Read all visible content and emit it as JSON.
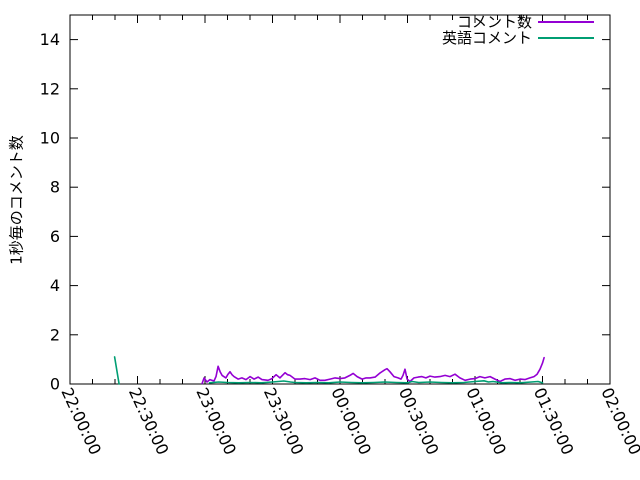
{
  "figure": {
    "background": "#ffffff",
    "axis_color": "#000000"
  },
  "chart_data": {
    "type": "line",
    "title": "",
    "xlabel": "",
    "ylabel": "1秒毎のコメント数",
    "ylim": [
      0,
      15
    ],
    "yticks": [
      0,
      2,
      4,
      6,
      8,
      10,
      12,
      14
    ],
    "x_unit": "minutes_after_22:00:00",
    "xlim_minutes": [
      0,
      240
    ],
    "xticks": [
      {
        "minute": 0,
        "label": "22:00:00"
      },
      {
        "minute": 30,
        "label": "22:30:00"
      },
      {
        "minute": 60,
        "label": "23:00:00"
      },
      {
        "minute": 90,
        "label": "23:30:00"
      },
      {
        "minute": 120,
        "label": "00:00:00"
      },
      {
        "minute": 150,
        "label": "00:30:00"
      },
      {
        "minute": 180,
        "label": "01:00:00"
      },
      {
        "minute": 210,
        "label": "01:30:00"
      },
      {
        "minute": 240,
        "label": "02:00:00"
      }
    ],
    "x_minor_tick_step_minutes": 10,
    "grid": false,
    "legend_position": "top-right-inside",
    "series": [
      {
        "name": "コメント数",
        "color": "#9400d3",
        "segments": [
          [
            [
              58.7,
              0.02
            ],
            [
              59.6,
              0.25
            ],
            [
              60.9,
              0.08
            ],
            [
              62.2,
              0.18
            ],
            [
              64,
              0.12
            ],
            [
              64.9,
              0.3
            ],
            [
              65.8,
              0.72
            ],
            [
              66.7,
              0.5
            ],
            [
              67.6,
              0.35
            ],
            [
              69.3,
              0.25
            ],
            [
              70.2,
              0.4
            ],
            [
              71.1,
              0.5
            ],
            [
              72,
              0.38
            ],
            [
              72.9,
              0.3
            ],
            [
              74.7,
              0.2
            ],
            [
              76.4,
              0.25
            ],
            [
              78.2,
              0.18
            ],
            [
              80,
              0.3
            ],
            [
              81.8,
              0.2
            ],
            [
              83.6,
              0.28
            ],
            [
              85.3,
              0.18
            ],
            [
              88,
              0.15
            ],
            [
              89.8,
              0.22
            ],
            [
              91.6,
              0.38
            ],
            [
              93.3,
              0.25
            ],
            [
              95.6,
              0.46
            ],
            [
              96.7,
              0.38
            ],
            [
              97.8,
              0.35
            ],
            [
              100,
              0.2
            ],
            [
              102.2,
              0.2
            ],
            [
              104.4,
              0.22
            ],
            [
              106.7,
              0.18
            ],
            [
              108.9,
              0.25
            ],
            [
              111.1,
              0.15
            ],
            [
              113.3,
              0.15
            ],
            [
              115.6,
              0.2
            ],
            [
              117.8,
              0.25
            ],
            [
              120,
              0.22
            ],
            [
              122.2,
              0.25
            ],
            [
              124.4,
              0.35
            ],
            [
              125.8,
              0.43
            ],
            [
              127.6,
              0.3
            ],
            [
              129.8,
              0.2
            ],
            [
              131.6,
              0.25
            ],
            [
              133.3,
              0.25
            ],
            [
              135.6,
              0.28
            ],
            [
              137.8,
              0.45
            ],
            [
              140,
              0.58
            ],
            [
              140.9,
              0.62
            ],
            [
              142.2,
              0.5
            ],
            [
              144,
              0.3
            ],
            [
              145.8,
              0.25
            ],
            [
              147.1,
              0.2
            ],
            [
              148,
              0.35
            ],
            [
              148.9,
              0.6
            ],
            [
              149.8,
              0.2
            ],
            [
              151.1,
              0.1
            ],
            [
              152.9,
              0.25
            ],
            [
              154.7,
              0.28
            ],
            [
              156.4,
              0.3
            ],
            [
              158.2,
              0.25
            ],
            [
              160,
              0.32
            ],
            [
              162.2,
              0.28
            ],
            [
              164.4,
              0.3
            ],
            [
              166.7,
              0.35
            ],
            [
              168.9,
              0.3
            ],
            [
              171.1,
              0.4
            ],
            [
              173.3,
              0.25
            ],
            [
              175.6,
              0.15
            ],
            [
              177.8,
              0.2
            ],
            [
              180,
              0.22
            ],
            [
              182.2,
              0.3
            ],
            [
              184.4,
              0.25
            ],
            [
              186.7,
              0.3
            ],
            [
              188.9,
              0.2
            ],
            [
              191.1,
              0.1
            ],
            [
              193.3,
              0.2
            ],
            [
              195.6,
              0.22
            ],
            [
              197.8,
              0.15
            ],
            [
              200,
              0.2
            ],
            [
              202.2,
              0.18
            ],
            [
              204.4,
              0.25
            ],
            [
              206.2,
              0.3
            ],
            [
              207.6,
              0.4
            ],
            [
              208.9,
              0.6
            ],
            [
              210,
              0.85
            ],
            [
              210.7,
              1.07
            ]
          ]
        ]
      },
      {
        "name": "英語コメント",
        "color": "#009e73",
        "segments": [
          [
            [
              19.8,
              1.1
            ],
            [
              21.8,
              0.0
            ]
          ],
          [
            [
              62,
              0.05
            ],
            [
              66,
              0.08
            ],
            [
              70,
              0.06
            ],
            [
              75,
              0.05
            ],
            [
              80,
              0.06
            ],
            [
              85,
              0.05
            ],
            [
              90,
              0.08
            ],
            [
              95,
              0.12
            ],
            [
              98,
              0.08
            ],
            [
              100,
              0.06
            ],
            [
              105,
              0.05
            ],
            [
              110,
              0.06
            ],
            [
              115,
              0.05
            ],
            [
              120,
              0.08
            ],
            [
              125,
              0.06
            ],
            [
              130,
              0.05
            ],
            [
              135,
              0.06
            ],
            [
              140,
              0.08
            ],
            [
              145,
              0.06
            ],
            [
              150,
              0.05
            ],
            [
              152,
              0.1
            ],
            [
              155,
              0.06
            ],
            [
              160,
              0.08
            ],
            [
              165,
              0.06
            ],
            [
              170,
              0.05
            ],
            [
              175,
              0.06
            ],
            [
              180,
              0.1
            ],
            [
              184,
              0.13
            ],
            [
              186,
              0.08
            ],
            [
              188,
              0.1
            ],
            [
              192,
              0.05
            ],
            [
              196,
              0.06
            ],
            [
              200,
              0.05
            ],
            [
              205,
              0.08
            ],
            [
              208,
              0.1
            ],
            [
              210,
              0.05
            ]
          ]
        ]
      }
    ]
  }
}
